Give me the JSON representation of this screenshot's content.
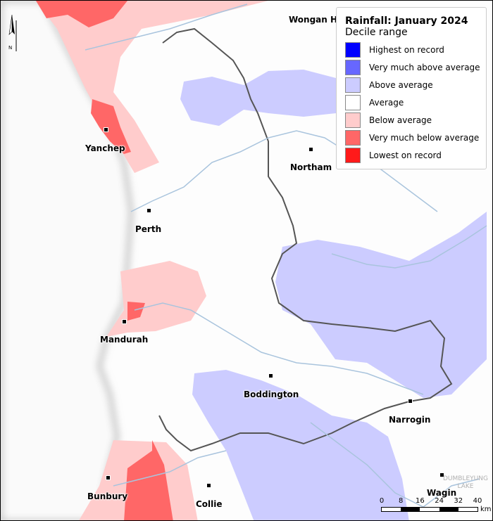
{
  "legend": {
    "title": "Rainfall: January 2024",
    "subtitle": "Decile range",
    "items": [
      {
        "label": "Highest on record",
        "color": "#0000ff"
      },
      {
        "label": "Very much above average",
        "color": "#6767ff"
      },
      {
        "label": "Above average",
        "color": "#ccccff"
      },
      {
        "label": "Average",
        "color": "#ffffff"
      },
      {
        "label": "Below average",
        "color": "#ffcccc"
      },
      {
        "label": "Very much below average",
        "color": "#ff6767"
      },
      {
        "label": "Lowest on record",
        "color": "#ff1a1a"
      }
    ]
  },
  "north_arrow": {
    "label": "N"
  },
  "towns": [
    {
      "name": "Wongan H"
    },
    {
      "name": "Yanchep"
    },
    {
      "name": "Northam"
    },
    {
      "name": "Perth"
    },
    {
      "name": "Mandurah"
    },
    {
      "name": "Boddington"
    },
    {
      "name": "Narrogin"
    },
    {
      "name": "Bunbury"
    },
    {
      "name": "Collie"
    },
    {
      "name": "Wagin"
    }
  ],
  "lake": {
    "line1": "DUMBLEYUNG",
    "line2": "LAKE"
  },
  "scale": {
    "ticks": [
      "0",
      "8",
      "16",
      "24",
      "32",
      "40"
    ],
    "unit": "km"
  }
}
